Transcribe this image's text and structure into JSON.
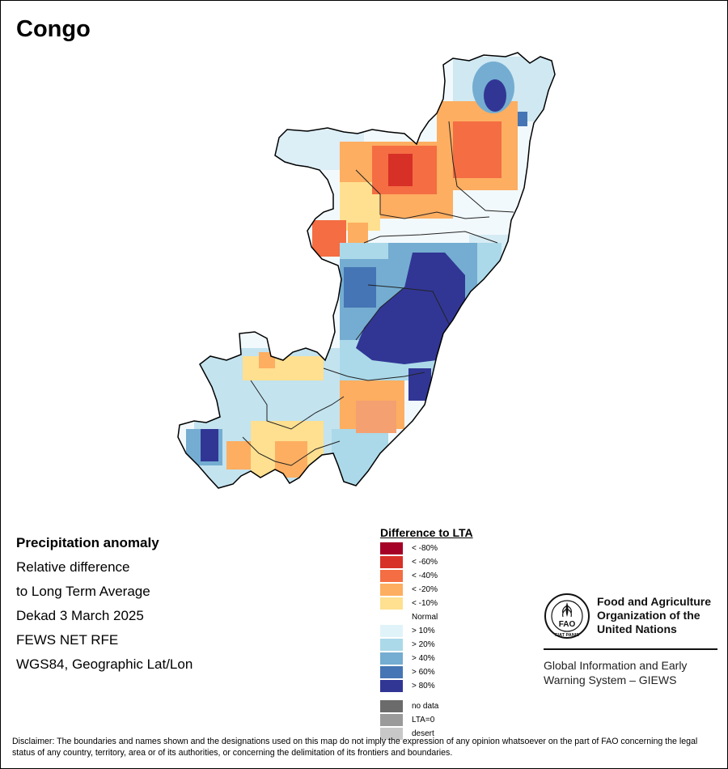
{
  "map": {
    "title": "Congo",
    "info": {
      "heading": "Precipitation anomaly",
      "line1": "Relative difference",
      "line2": "to Long Term Average",
      "period": "Dekad 3 March 2025",
      "source": "FEWS NET RFE",
      "projection": "WGS84, Geographic Lat/Lon"
    },
    "legend": {
      "title": "Difference to LTA",
      "items": [
        {
          "label": "< -80%",
          "color": "#a50026"
        },
        {
          "label": "< -60%",
          "color": "#d73027"
        },
        {
          "label": "< -40%",
          "color": "#f46d43"
        },
        {
          "label": "< -20%",
          "color": "#fdae61"
        },
        {
          "label": "< -10%",
          "color": "#fee090"
        },
        {
          "label": "Normal",
          "color": "#ffffff"
        },
        {
          "label": "> 10%",
          "color": "#e0f3f8"
        },
        {
          "label": "> 20%",
          "color": "#abd9e9"
        },
        {
          "label": "> 40%",
          "color": "#74add1"
        },
        {
          "label": "> 60%",
          "color": "#4575b4"
        },
        {
          "label": "> 80%",
          "color": "#313695"
        }
      ],
      "extra": [
        {
          "label": "no data",
          "color": "#6b6b6b"
        },
        {
          "label": "LTA=0",
          "color": "#9a9a9a"
        },
        {
          "label": "desert",
          "color": "#c8c8c8"
        }
      ]
    },
    "organization": {
      "logo_icon": "fao-logo-icon",
      "logo_text": "FAO",
      "logo_ring_text": "FIAT PANIS",
      "name_line1": "Food and Agriculture",
      "name_line2": "Organization of the",
      "name_line3": "United Nations",
      "system_line1": "Global Information and Early",
      "system_line2": "Warning System – GIEWS"
    },
    "disclaimer": "Disclaimer: The boundaries and names shown and the designations used on this map do not imply the expression of any opinion whatsoever on the part of FAO concerning the legal status of any country, territory, area or of its authorities, or concerning the delimitation of its frontiers and boundaries."
  }
}
